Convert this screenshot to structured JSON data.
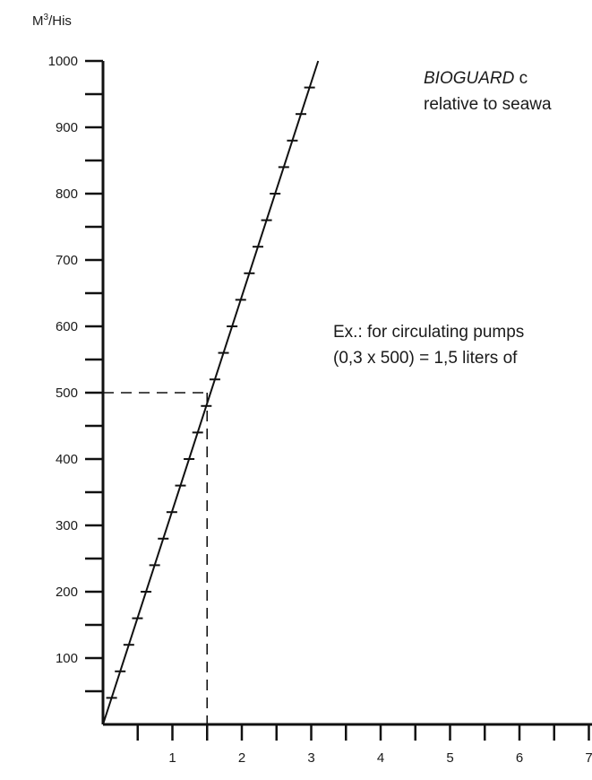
{
  "chart_data": {
    "type": "line",
    "ylabel_base": "M",
    "ylabel_sup": "3",
    "ylabel_rest": "/His",
    "xlabel": "",
    "xlim": [
      0,
      7
    ],
    "ylim": [
      0,
      1000
    ],
    "x_ticks": [
      1,
      2,
      3,
      4,
      5,
      6,
      7
    ],
    "y_ticks": [
      100,
      200,
      300,
      400,
      500,
      600,
      700,
      800,
      900,
      1000
    ],
    "series": [
      {
        "x": [
          0,
          3.1
        ],
        "y": [
          0,
          1000
        ]
      }
    ],
    "markers_y": [
      40,
      80,
      120,
      160,
      200,
      240,
      280,
      320,
      360,
      400,
      440,
      480,
      520,
      560,
      600,
      640,
      680,
      720,
      760,
      800,
      840,
      880,
      920,
      960
    ],
    "reference": {
      "x": 1.5,
      "y": 500
    },
    "grid": false
  },
  "notes": {
    "top_line1_italic": "BIOGUARD",
    "top_line1_rest": " c",
    "top_line2": "relative to seawa",
    "mid_line1": "Ex.: for circulating pumps",
    "mid_line2": "(0,3 x 500) = 1,5 liters of"
  }
}
